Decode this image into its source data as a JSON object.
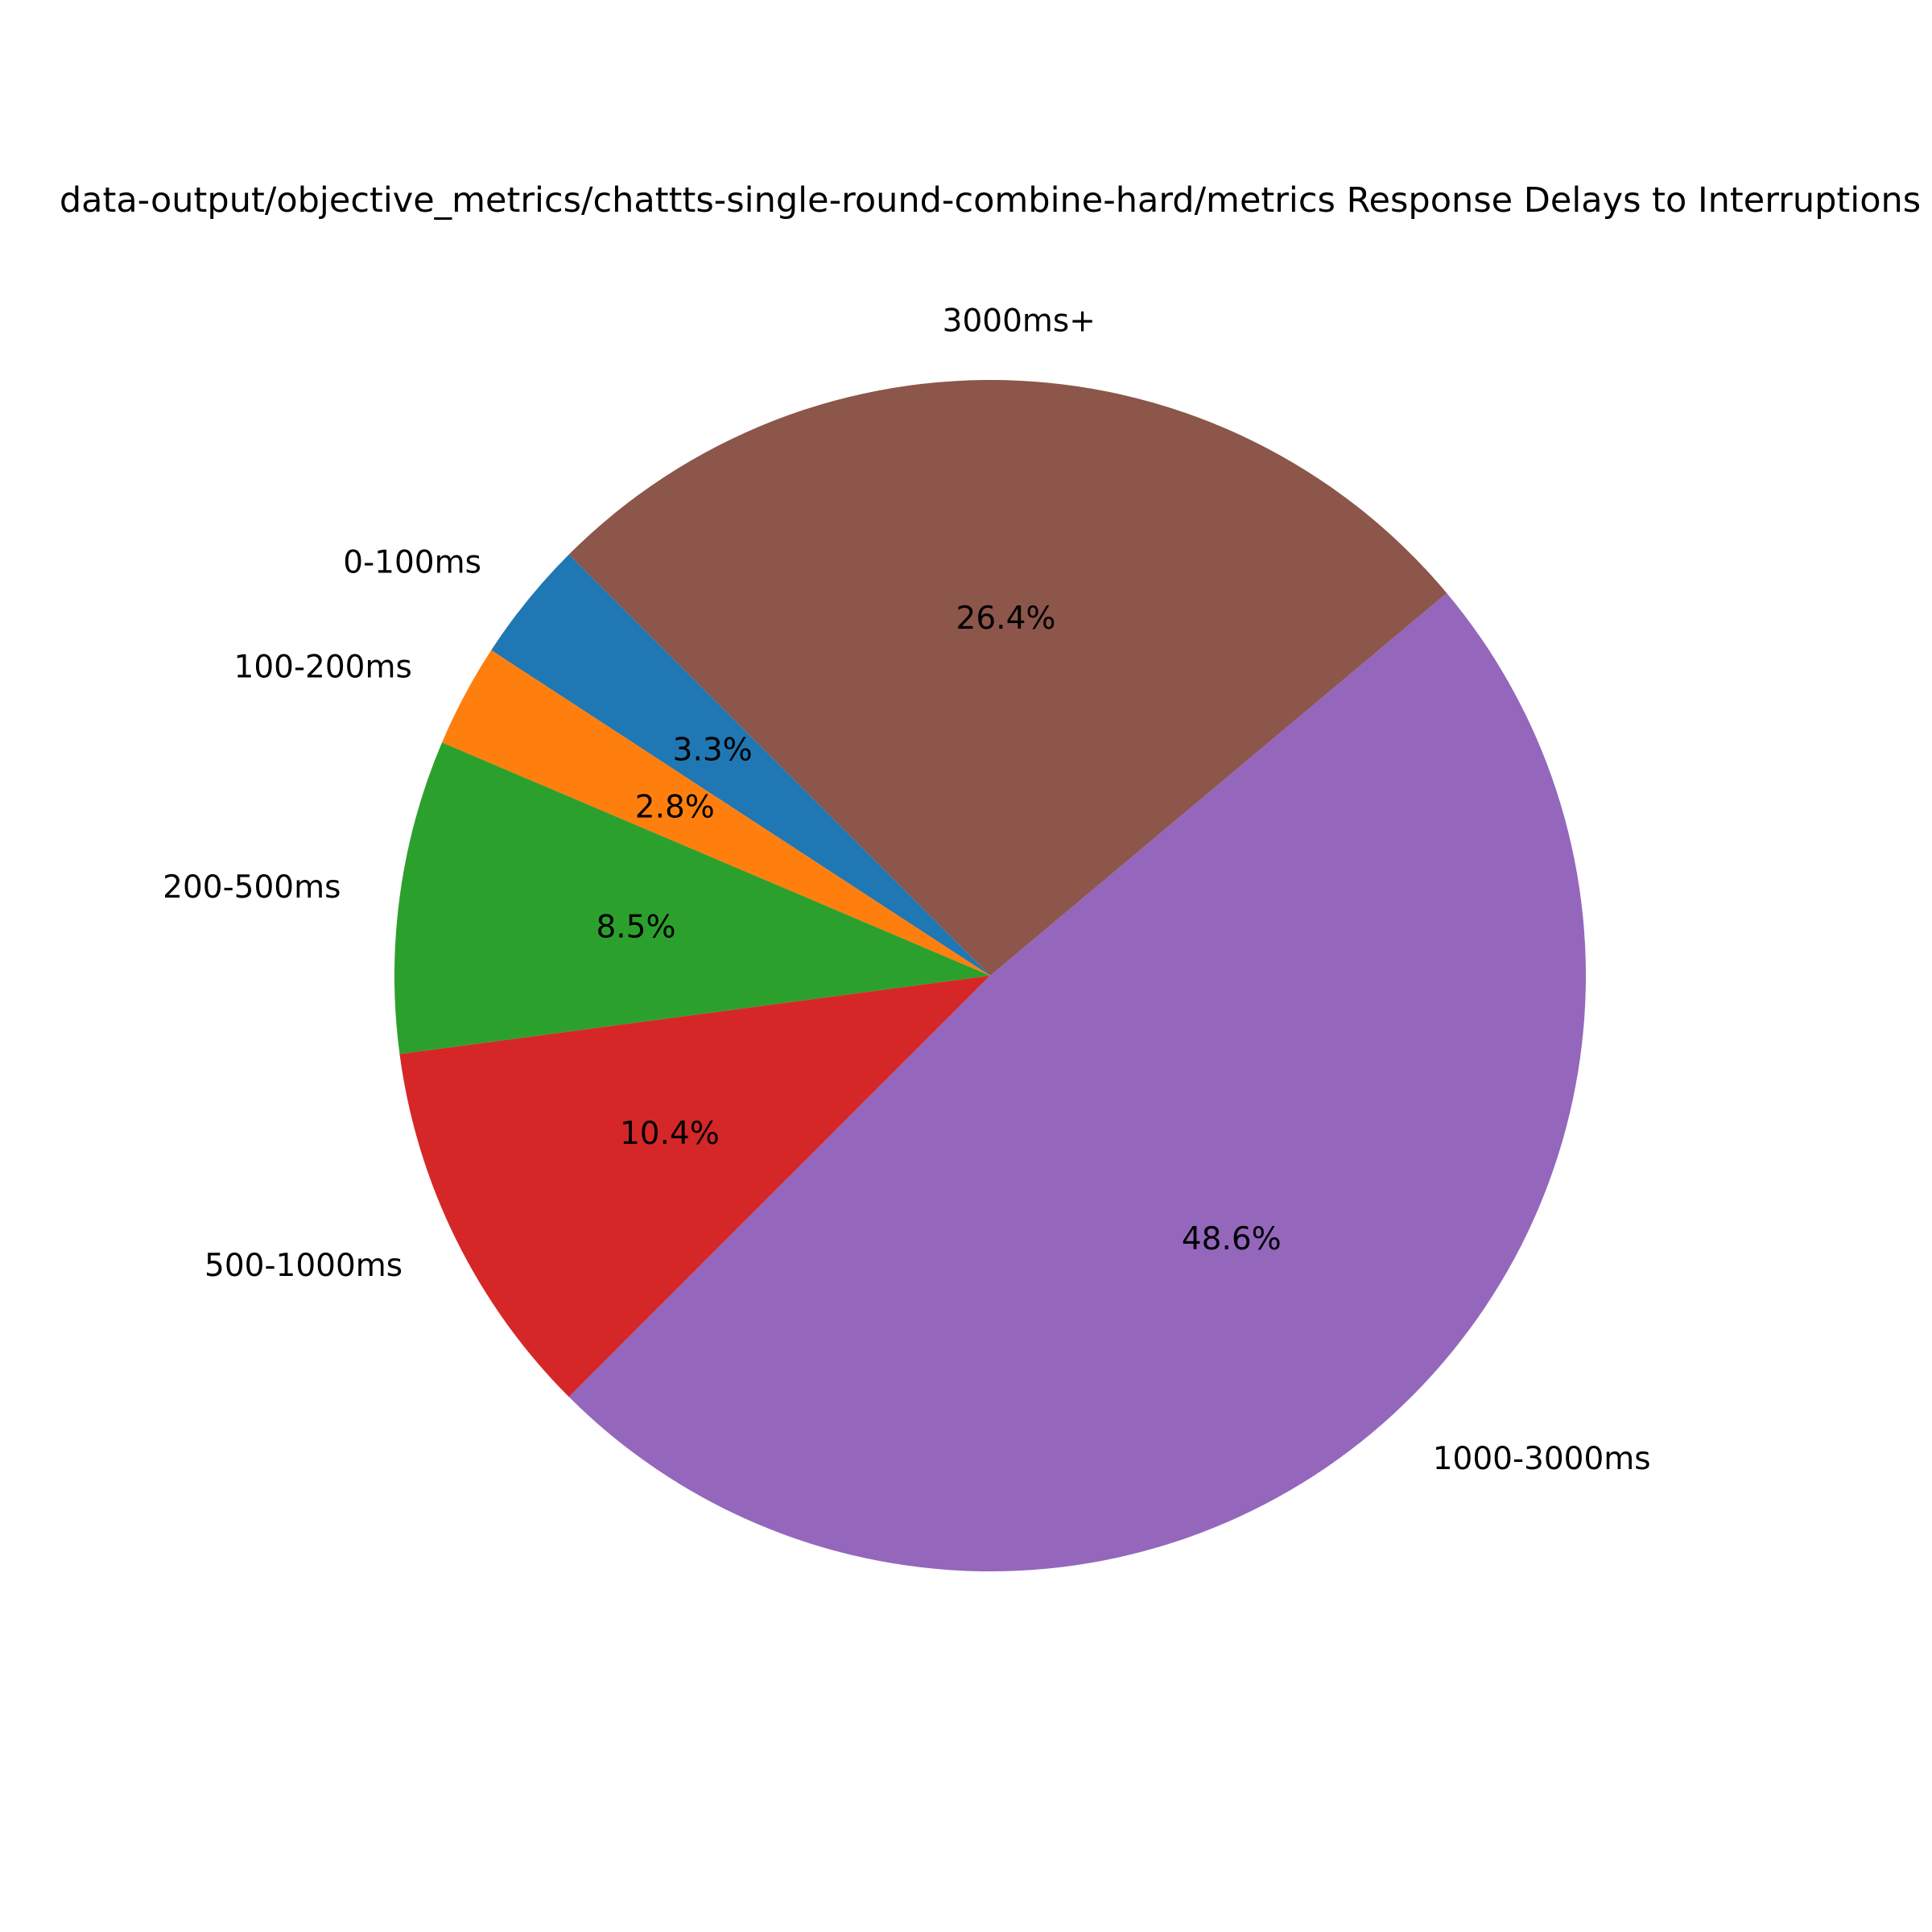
{
  "chart_data": {
    "type": "pie",
    "title": "data-output/objective_metrics/chattts-single-round-combine-hard/metrics Response Delays to Interruptions",
    "start_angle_deg": 135,
    "direction": "counterclockwise",
    "slices": [
      {
        "label": "0-100ms",
        "value": 3.3,
        "pct_label": "3.3%",
        "color": "#1f77b4"
      },
      {
        "label": "100-200ms",
        "value": 2.8,
        "pct_label": "2.8%",
        "color": "#ff7f0e"
      },
      {
        "label": "200-500ms",
        "value": 8.5,
        "pct_label": "8.5%",
        "color": "#2ca02c"
      },
      {
        "label": "500-1000ms",
        "value": 10.4,
        "pct_label": "10.4%",
        "color": "#d62728"
      },
      {
        "label": "1000-3000ms",
        "value": 48.6,
        "pct_label": "48.6%",
        "color": "#9467bd"
      },
      {
        "label": "3000ms+",
        "value": 26.4,
        "pct_label": "26.4%",
        "color": "#8c564b"
      }
    ]
  }
}
